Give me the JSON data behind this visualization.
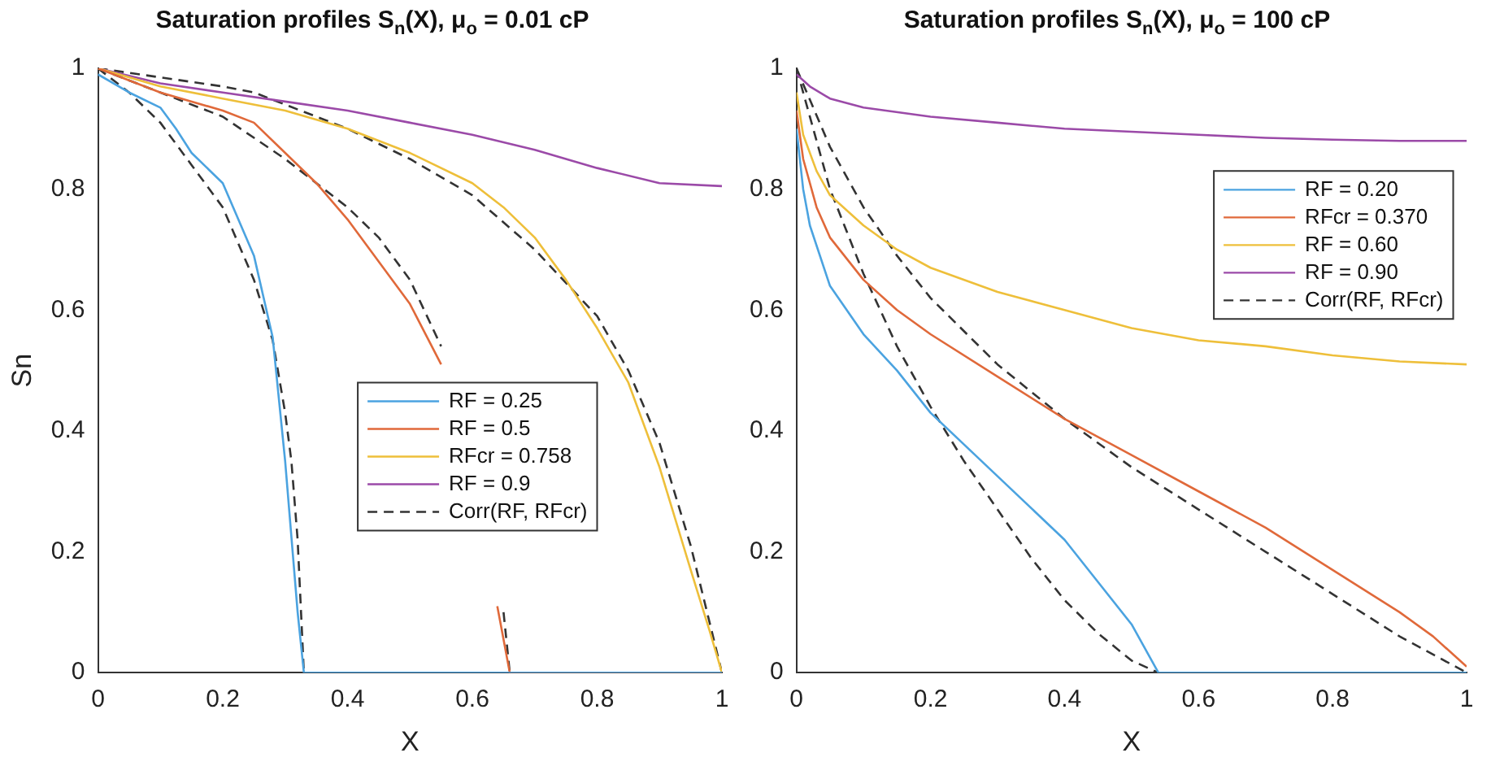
{
  "chart_data": [
    {
      "type": "line",
      "title": "Saturation profiles S$_{n}$(X), μ$_{o}$ = 0.01 cP",
      "xlabel": "X",
      "ylabel": "Sn",
      "xlim": [
        0,
        1
      ],
      "ylim": [
        0,
        1
      ],
      "xticks": [
        0,
        0.2,
        0.4,
        0.6,
        0.8,
        1
      ],
      "yticks": [
        0,
        0.2,
        0.4,
        0.6,
        0.8,
        1
      ],
      "grid": false,
      "legend": "right",
      "series": [
        {
          "name": "RF = 0.25",
          "color": "#4ba3e0",
          "x": [
            0,
            0.05,
            0.1,
            0.125,
            0.15,
            0.2,
            0.25,
            0.28,
            0.3,
            0.32,
            0.33,
            0.66,
            1
          ],
          "values": [
            0.99,
            0.96,
            0.935,
            0.9,
            0.86,
            0.81,
            0.69,
            0.555,
            0.35,
            0.1,
            0,
            0,
            0
          ]
        },
        {
          "name": "RF = 0.5",
          "color": "#e0693a",
          "x": [
            0,
            0.1,
            0.2,
            0.25,
            0.3,
            0.35,
            0.4,
            0.45,
            0.5,
            0.55,
            0.58,
            0.6,
            0.62,
            0.64,
            0.66,
            1
          ],
          "values": [
            1,
            0.96,
            0.93,
            0.91,
            0.86,
            0.81,
            0.75,
            0.68,
            0.61,
            0.51,
            null,
            null,
            null,
            0.11,
            0,
            0
          ]
        },
        {
          "name": "RFcr = 0.758",
          "color": "#eebf3a",
          "x": [
            0,
            0.1,
            0.2,
            0.3,
            0.4,
            0.5,
            0.6,
            0.65,
            0.7,
            0.75,
            0.8,
            0.85,
            0.9,
            0.95,
            0.98,
            1
          ],
          "values": [
            1,
            0.97,
            0.95,
            0.93,
            0.9,
            0.86,
            0.81,
            0.77,
            0.72,
            0.65,
            0.57,
            0.48,
            0.34,
            0.17,
            0.07,
            0
          ]
        },
        {
          "name": "RF = 0.9",
          "color": "#9b4aa8",
          "x": [
            0,
            0.1,
            0.2,
            0.3,
            0.4,
            0.5,
            0.6,
            0.7,
            0.8,
            0.9,
            1
          ],
          "values": [
            1,
            0.975,
            0.96,
            0.945,
            0.93,
            0.91,
            0.89,
            0.865,
            0.835,
            0.81,
            0.805
          ]
        },
        {
          "name": "Corr(RF, RFcr)",
          "color": "#333333",
          "line_style": "dashed",
          "x": [
            0,
            0.05,
            0.1,
            0.15,
            0.2,
            0.25,
            0.28,
            0.3,
            0.31,
            0.32,
            0.33
          ],
          "values": [
            1,
            0.96,
            0.91,
            0.84,
            0.77,
            0.65,
            0.55,
            0.43,
            0.35,
            0.22,
            0
          ]
        },
        {
          "color": "#333333",
          "line_style": "dashed",
          "x": [
            0,
            0.1,
            0.2,
            0.3,
            0.4,
            0.45,
            0.5,
            0.55,
            0.6,
            0.63,
            0.65,
            0.66
          ],
          "values": [
            1,
            0.96,
            0.92,
            0.85,
            0.77,
            0.72,
            0.65,
            0.54,
            null,
            null,
            0.1,
            0
          ]
        },
        {
          "color": "#333333",
          "line_style": "dashed",
          "x": [
            0,
            0.1,
            0.2,
            0.25,
            0.3,
            0.4,
            0.5,
            0.6,
            0.7,
            0.8,
            0.85,
            0.9,
            0.95,
            1
          ],
          "values": [
            1,
            0.985,
            0.97,
            0.96,
            0.94,
            0.9,
            0.85,
            0.79,
            0.7,
            0.59,
            0.5,
            0.38,
            0.21,
            0
          ]
        }
      ]
    },
    {
      "type": "line",
      "title": "Saturation profiles S$_{n}$(X), μ$_{o}$ = 100 cP",
      "xlabel": "X",
      "xlim": [
        0,
        1
      ],
      "ylim": [
        0,
        1
      ],
      "xticks": [
        0,
        0.2,
        0.4,
        0.6,
        0.8,
        1
      ],
      "yticks": [
        0,
        0.2,
        0.4,
        0.6,
        0.8,
        1
      ],
      "grid": false,
      "legend": "top right",
      "series": [
        {
          "name": "RF = 0.20",
          "color": "#4ba3e0",
          "x": [
            0,
            0.01,
            0.02,
            0.05,
            0.1,
            0.15,
            0.2,
            0.3,
            0.4,
            0.45,
            0.5,
            0.54,
            1
          ],
          "values": [
            0.9,
            0.8,
            0.74,
            0.64,
            0.56,
            0.5,
            0.43,
            0.325,
            0.22,
            0.15,
            0.08,
            0,
            0
          ]
        },
        {
          "name": "RFcr = 0.370",
          "color": "#e0693a",
          "x": [
            0,
            0.01,
            0.03,
            0.05,
            0.1,
            0.15,
            0.2,
            0.3,
            0.4,
            0.5,
            0.6,
            0.7,
            0.8,
            0.9,
            0.95,
            1
          ],
          "values": [
            0.93,
            0.85,
            0.77,
            0.72,
            0.65,
            0.6,
            0.56,
            0.49,
            0.42,
            0.36,
            0.3,
            0.24,
            0.17,
            0.1,
            0.06,
            0.01
          ]
        },
        {
          "name": "RF = 0.60",
          "color": "#eebf3a",
          "x": [
            0,
            0.01,
            0.03,
            0.05,
            0.1,
            0.15,
            0.2,
            0.3,
            0.4,
            0.5,
            0.6,
            0.7,
            0.8,
            0.9,
            1
          ],
          "values": [
            0.96,
            0.89,
            0.83,
            0.79,
            0.74,
            0.7,
            0.67,
            0.63,
            0.6,
            0.57,
            0.55,
            0.54,
            0.525,
            0.515,
            0.51
          ]
        },
        {
          "name": "RF = 0.90",
          "color": "#9b4aa8",
          "x": [
            0,
            0.02,
            0.05,
            0.1,
            0.2,
            0.3,
            0.4,
            0.5,
            0.6,
            0.7,
            0.8,
            0.9,
            1
          ],
          "values": [
            0.99,
            0.97,
            0.95,
            0.935,
            0.92,
            0.91,
            0.9,
            0.895,
            0.89,
            0.885,
            0.882,
            0.88,
            0.88
          ]
        },
        {
          "name": "Corr(RF, RFcr)",
          "color": "#333333",
          "line_style": "dashed",
          "x": [
            0,
            0.05,
            0.1,
            0.15,
            0.2,
            0.25,
            0.3,
            0.35,
            0.4,
            0.45,
            0.5,
            0.54
          ],
          "values": [
            1,
            0.8,
            0.66,
            0.54,
            0.44,
            0.35,
            0.27,
            0.19,
            0.12,
            0.065,
            0.02,
            0
          ]
        },
        {
          "color": "#333333",
          "line_style": "dashed",
          "x": [
            0,
            0.05,
            0.1,
            0.15,
            0.2,
            0.3,
            0.4,
            0.5,
            0.6,
            0.7,
            0.8,
            0.9,
            1
          ],
          "values": [
            1,
            0.87,
            0.77,
            0.69,
            0.62,
            0.51,
            0.42,
            0.34,
            0.27,
            0.2,
            0.13,
            0.06,
            0
          ]
        }
      ]
    }
  ]
}
